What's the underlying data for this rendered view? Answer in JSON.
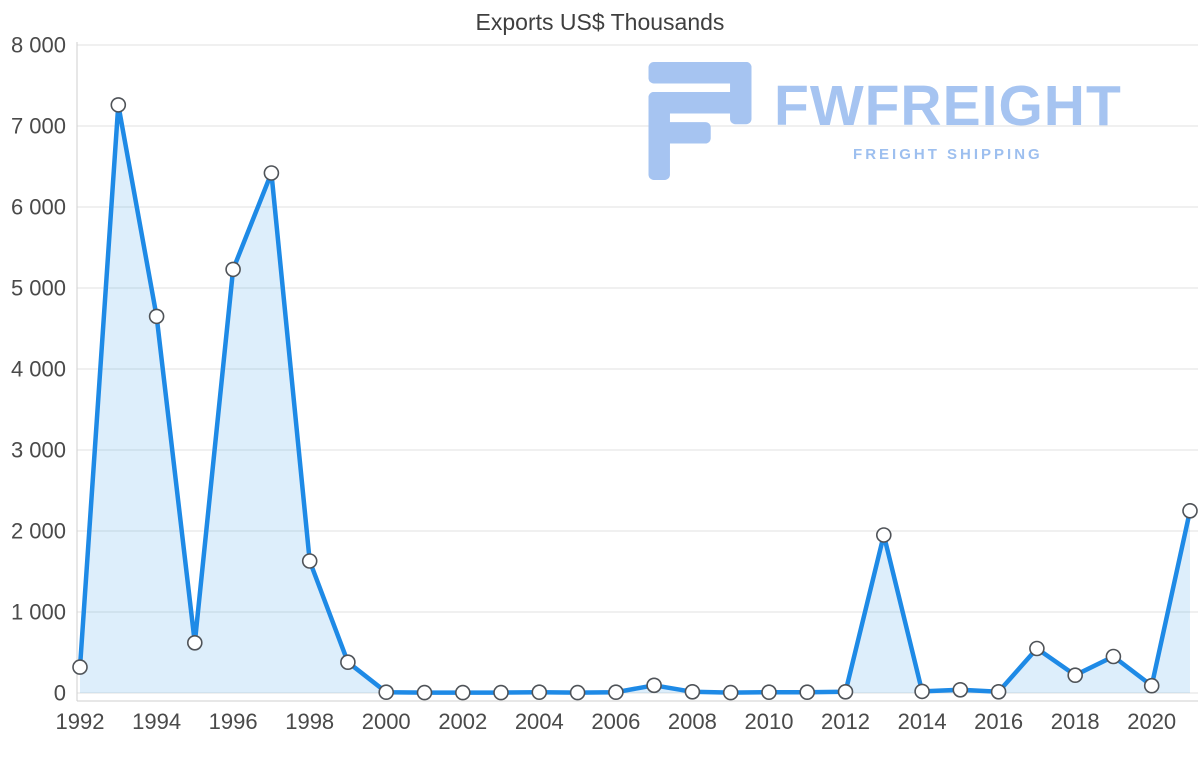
{
  "watermark": {
    "brand": "FWFREIGHT",
    "tagline": "FREIGHT SHIPPING"
  },
  "colors": {
    "line": "#1e8ae6",
    "area_fill": "#1e8ae6",
    "area_opacity": 0.15,
    "marker_fill": "#ffffff",
    "marker_stroke": "#4f5358",
    "grid": "#e2e2e2",
    "axis": "#cfcfcf",
    "tick_text": "#4a4a4a",
    "title_text": "#3f3f3f",
    "watermark_blue": "#a6c4f1"
  },
  "chart_data": {
    "type": "area",
    "title": "Exports US$ Thousands",
    "xlabel": "",
    "ylabel": "",
    "grid": true,
    "legend": false,
    "ylim": [
      0,
      8000
    ],
    "yticks": [
      0,
      1000,
      2000,
      3000,
      4000,
      5000,
      6000,
      7000,
      8000
    ],
    "ytick_labels": [
      "0",
      "1 000",
      "2 000",
      "3 000",
      "4 000",
      "5 000",
      "6 000",
      "7 000",
      "8 000"
    ],
    "xtick_labels": [
      "1992",
      "1994",
      "1996",
      "1998",
      "2000",
      "2002",
      "2004",
      "2006",
      "2008",
      "2010",
      "2012",
      "2014",
      "2016",
      "2018",
      "2020"
    ],
    "x": [
      1992,
      1993,
      1994,
      1995,
      1996,
      1997,
      1998,
      1999,
      2000,
      2001,
      2002,
      2003,
      2004,
      2005,
      2006,
      2007,
      2008,
      2009,
      2010,
      2011,
      2012,
      2013,
      2014,
      2015,
      2016,
      2017,
      2018,
      2019,
      2020,
      2021
    ],
    "values": [
      320,
      7260,
      4650,
      620,
      5230,
      6420,
      1630,
      380,
      10,
      5,
      5,
      5,
      10,
      5,
      10,
      95,
      15,
      5,
      10,
      10,
      15,
      1950,
      20,
      40,
      15,
      550,
      220,
      450,
      90,
      2250
    ]
  }
}
